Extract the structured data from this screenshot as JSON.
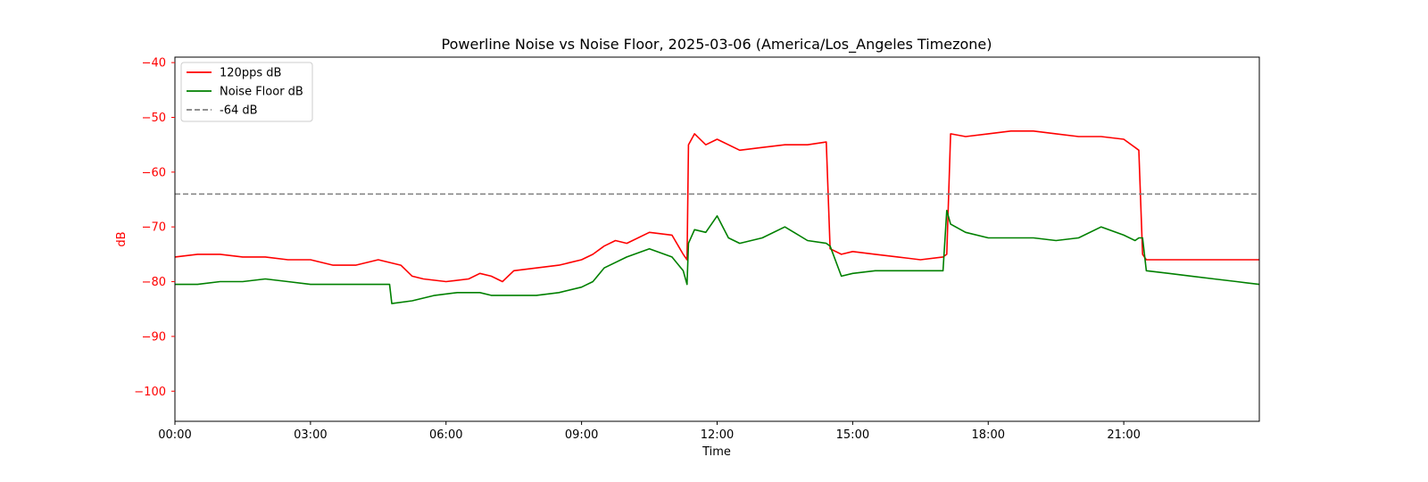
{
  "chart_data": {
    "type": "line",
    "title": "Powerline Noise vs Noise Floor, 2025-03-06 (America/Los_Angeles Timezone)",
    "xlabel": "Time",
    "ylabel": "dB",
    "xlim": [
      "00:00",
      "24:00"
    ],
    "ylim": [
      -105.5,
      -39
    ],
    "x_tick_labels": [
      "00:00",
      "03:00",
      "06:00",
      "09:00",
      "12:00",
      "15:00",
      "18:00",
      "21:00"
    ],
    "y_ticks": [
      -40,
      -50,
      -60,
      -70,
      -80,
      -90,
      -100
    ],
    "y_tick_labels": [
      "−40",
      "−50",
      "−60",
      "−70",
      "−80",
      "−90",
      "−100"
    ],
    "grid": false,
    "legend_position": "upper-left",
    "series": [
      {
        "name": "120pps dB",
        "color": "#ff0000",
        "style": "solid",
        "x": [
          "00:00",
          "00:30",
          "01:00",
          "01:30",
          "02:00",
          "02:30",
          "03:00",
          "03:30",
          "04:00",
          "04:30",
          "05:00",
          "05:15",
          "05:30",
          "06:00",
          "06:30",
          "06:45",
          "07:00",
          "07:15",
          "07:30",
          "08:00",
          "08:30",
          "09:00",
          "09:15",
          "09:30",
          "09:45",
          "10:00",
          "10:30",
          "11:00",
          "11:15",
          "11:20",
          "11:22",
          "11:30",
          "11:45",
          "12:00",
          "12:30",
          "13:00",
          "13:30",
          "14:00",
          "14:25",
          "14:30",
          "14:45",
          "15:00",
          "15:30",
          "16:00",
          "16:30",
          "17:00",
          "17:05",
          "17:10",
          "17:30",
          "18:00",
          "18:30",
          "19:00",
          "19:30",
          "20:00",
          "20:30",
          "21:00",
          "21:15",
          "21:20",
          "21:25",
          "21:30",
          "22:00",
          "22:30",
          "23:00",
          "23:30",
          "24:00"
        ],
        "values": [
          -75.5,
          -75,
          -75,
          -75.5,
          -75.5,
          -76,
          -76,
          -77,
          -77,
          -76,
          -77,
          -79,
          -79.5,
          -80,
          -79.5,
          -78.5,
          -79,
          -80,
          -78,
          -77.5,
          -77,
          -76,
          -75,
          -73.5,
          -72.5,
          -73,
          -71,
          -71.5,
          -75,
          -76,
          -55,
          -53,
          -55,
          -54,
          -56,
          -55.5,
          -55,
          -55,
          -54.5,
          -74,
          -75,
          -74.5,
          -75,
          -75.5,
          -76,
          -75.5,
          -75,
          -53,
          -53.5,
          -53,
          -52.5,
          -52.5,
          -53,
          -53.5,
          -53.5,
          -54,
          -55.5,
          -56,
          -75,
          -76,
          -76,
          -76,
          -76,
          -76,
          -76
        ]
      },
      {
        "name": "Noise Floor dB",
        "color": "#008000",
        "style": "solid",
        "x": [
          "00:00",
          "00:30",
          "01:00",
          "01:30",
          "02:00",
          "02:30",
          "03:00",
          "03:30",
          "04:00",
          "04:30",
          "04:45",
          "04:48",
          "05:15",
          "05:45",
          "06:15",
          "06:45",
          "07:00",
          "07:30",
          "08:00",
          "08:30",
          "09:00",
          "09:15",
          "09:30",
          "10:00",
          "10:30",
          "11:00",
          "11:15",
          "11:20",
          "11:22",
          "11:30",
          "11:45",
          "12:00",
          "12:15",
          "12:30",
          "13:00",
          "13:30",
          "14:00",
          "14:25",
          "14:30",
          "14:45",
          "15:00",
          "15:30",
          "16:00",
          "16:30",
          "17:00",
          "17:05",
          "17:10",
          "17:30",
          "18:00",
          "18:30",
          "19:00",
          "19:30",
          "20:00",
          "20:30",
          "21:00",
          "21:15",
          "21:20",
          "21:25",
          "21:30",
          "22:00",
          "22:30",
          "23:00",
          "23:30",
          "24:00"
        ],
        "values": [
          -80.5,
          -80.5,
          -80,
          -80,
          -79.5,
          -80,
          -80.5,
          -80.5,
          -80.5,
          -80.5,
          -80.5,
          -84,
          -83.5,
          -82.5,
          -82,
          -82,
          -82.5,
          -82.5,
          -82.5,
          -82,
          -81,
          -80,
          -77.5,
          -75.5,
          -74,
          -75.5,
          -78,
          -80.5,
          -73,
          -70.5,
          -71,
          -68,
          -72,
          -73,
          -72,
          -70,
          -72.5,
          -73,
          -73.5,
          -79,
          -78.5,
          -78,
          -78,
          -78,
          -78,
          -67,
          -69.5,
          -71,
          -72,
          -72,
          -72,
          -72.5,
          -72,
          -70,
          -71.5,
          -72.5,
          -72,
          -72,
          -78,
          -78.5,
          -79,
          -79.5,
          -80,
          -80.5
        ]
      },
      {
        "name": "-64 dB",
        "color": "#808080",
        "style": "dashed",
        "x": [
          "00:00",
          "24:00"
        ],
        "values": [
          -64,
          -64
        ]
      }
    ]
  }
}
